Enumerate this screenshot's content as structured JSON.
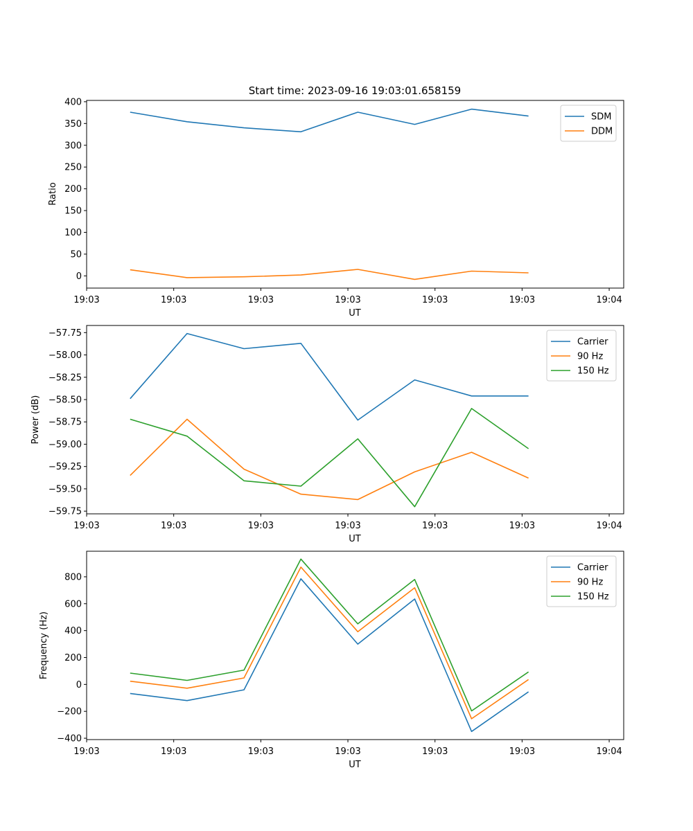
{
  "chart_data": [
    {
      "type": "line",
      "title": "Start time: 2023-09-16 19:03:01.658159",
      "xlabel": "UT",
      "ylabel": "Ratio",
      "xlim": [
        0,
        9.25
      ],
      "ylim": [
        -28,
        403
      ],
      "yticks": [
        0,
        50,
        100,
        150,
        200,
        250,
        300,
        350,
        400
      ],
      "yticklabels": [
        "0",
        "50",
        "100",
        "150",
        "200",
        "250",
        "300",
        "350",
        "400"
      ],
      "xticks": [
        0,
        1.5,
        3,
        4.5,
        6,
        7.5,
        9
      ],
      "xticklabels": [
        "19:03",
        "19:03",
        "19:03",
        "19:03",
        "19:03",
        "19:03",
        "19:04"
      ],
      "x": [
        0.75,
        1.73,
        2.71,
        3.69,
        4.67,
        5.65,
        6.63,
        7.61
      ],
      "legend": "top-right",
      "series": [
        {
          "name": "SDM",
          "color": "#1f77b4",
          "values": [
            376,
            354,
            340,
            331,
            376,
            348,
            383,
            367
          ]
        },
        {
          "name": "DDM",
          "color": "#ff7f0e",
          "values": [
            14,
            -4,
            -2,
            2,
            15,
            -8,
            11,
            7
          ]
        }
      ]
    },
    {
      "type": "line",
      "title": "",
      "xlabel": "UT",
      "ylabel": "Power (dB)",
      "xlim": [
        0,
        9.25
      ],
      "ylim": [
        -59.78,
        -57.67
      ],
      "yticks": [
        -57.75,
        -58.0,
        -58.25,
        -58.5,
        -58.75,
        -59.0,
        -59.25,
        -59.5,
        -59.75
      ],
      "yticklabels": [
        "−57.75",
        "−58.00",
        "−58.25",
        "−58.50",
        "−58.75",
        "−59.00",
        "−59.25",
        "−59.50",
        "−59.75"
      ],
      "xticks": [
        0,
        1.5,
        3,
        4.5,
        6,
        7.5,
        9
      ],
      "xticklabels": [
        "19:03",
        "19:03",
        "19:03",
        "19:03",
        "19:03",
        "19:03",
        "19:04"
      ],
      "x": [
        0.75,
        1.73,
        2.71,
        3.69,
        4.67,
        5.65,
        6.63,
        7.61
      ],
      "legend": "top-right",
      "series": [
        {
          "name": "Carrier",
          "color": "#1f77b4",
          "values": [
            -58.49,
            -57.76,
            -57.93,
            -57.87,
            -58.73,
            -58.28,
            -58.46,
            -58.46
          ]
        },
        {
          "name": "90 Hz",
          "color": "#ff7f0e",
          "values": [
            -59.35,
            -58.72,
            -59.28,
            -59.56,
            -59.62,
            -59.31,
            -59.09,
            -59.38
          ]
        },
        {
          "name": "150 Hz",
          "color": "#2ca02c",
          "values": [
            -58.72,
            -58.91,
            -59.41,
            -59.47,
            -58.94,
            -59.7,
            -58.6,
            -59.05
          ]
        }
      ]
    },
    {
      "type": "line",
      "title": "",
      "xlabel": "UT",
      "ylabel": "Frequency (Hz)",
      "xlim": [
        0,
        9.25
      ],
      "ylim": [
        -410,
        990
      ],
      "yticks": [
        800,
        600,
        400,
        200,
        0,
        -200,
        -400
      ],
      "yticklabels": [
        "800",
        "600",
        "400",
        "200",
        "0",
        "−200",
        "−400"
      ],
      "xticks": [
        0,
        1.5,
        3,
        4.5,
        6,
        7.5,
        9
      ],
      "xticklabels": [
        "19:03",
        "19:03",
        "19:03",
        "19:03",
        "19:03",
        "19:03",
        "19:04"
      ],
      "x": [
        0.75,
        1.73,
        2.71,
        3.69,
        4.67,
        5.65,
        6.63,
        7.61
      ],
      "legend": "top-right",
      "series": [
        {
          "name": "Carrier",
          "color": "#1f77b4",
          "values": [
            -67,
            -120,
            -40,
            785,
            300,
            635,
            -350,
            -55
          ]
        },
        {
          "name": "90 Hz",
          "color": "#ff7f0e",
          "values": [
            24,
            -28,
            48,
            872,
            392,
            718,
            -255,
            36
          ]
        },
        {
          "name": "150 Hz",
          "color": "#2ca02c",
          "values": [
            84,
            30,
            107,
            932,
            450,
            780,
            -197,
            93
          ]
        }
      ]
    }
  ]
}
